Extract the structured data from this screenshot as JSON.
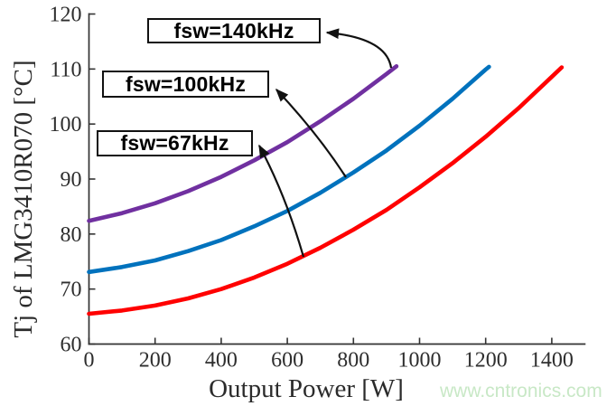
{
  "page": {
    "background": "#ffffff"
  },
  "watermark": {
    "text": "www.cntronics.com",
    "color": "#c8e8c6"
  },
  "chart_data": {
    "type": "line",
    "title": "",
    "xlabel": "Output Power [W]",
    "ylabel": "Tj of LMG3410R070 [°C]",
    "xlim": [
      0,
      1500
    ],
    "ylim": [
      60,
      120
    ],
    "xticks": [
      0,
      200,
      400,
      600,
      800,
      1000,
      1200,
      1400
    ],
    "yticks": [
      60,
      70,
      80,
      90,
      100,
      110,
      120
    ],
    "grid": false,
    "legend_position": "none",
    "axis_color": "#333333",
    "series": [
      {
        "name": "fsw=140kHz",
        "color": "#7030a0",
        "points": [
          [
            0,
            82.4
          ],
          [
            100,
            83.8
          ],
          [
            200,
            85.6
          ],
          [
            300,
            87.8
          ],
          [
            400,
            90.4
          ],
          [
            500,
            93.4
          ],
          [
            600,
            96.7
          ],
          [
            700,
            100.5
          ],
          [
            800,
            104.6
          ],
          [
            900,
            109.1
          ],
          [
            930,
            110.5
          ]
        ]
      },
      {
        "name": "fsw=100kHz",
        "color": "#0072bd",
        "points": [
          [
            0,
            73.1
          ],
          [
            100,
            74.0
          ],
          [
            200,
            75.2
          ],
          [
            300,
            76.9
          ],
          [
            400,
            78.9
          ],
          [
            500,
            81.4
          ],
          [
            600,
            84.2
          ],
          [
            700,
            87.5
          ],
          [
            800,
            91.2
          ],
          [
            900,
            95.2
          ],
          [
            1000,
            99.7
          ],
          [
            1100,
            104.6
          ],
          [
            1200,
            109.9
          ],
          [
            1210,
            110.4
          ]
        ]
      },
      {
        "name": "fsw=67kHz",
        "color": "#ff0000",
        "points": [
          [
            0,
            65.5
          ],
          [
            100,
            66.1
          ],
          [
            200,
            67.0
          ],
          [
            300,
            68.3
          ],
          [
            400,
            70.0
          ],
          [
            500,
            72.1
          ],
          [
            600,
            74.6
          ],
          [
            700,
            77.5
          ],
          [
            800,
            80.8
          ],
          [
            900,
            84.4
          ],
          [
            1000,
            88.5
          ],
          [
            1100,
            92.9
          ],
          [
            1200,
            97.7
          ],
          [
            1300,
            102.9
          ],
          [
            1400,
            108.6
          ],
          [
            1430,
            110.3
          ]
        ]
      }
    ],
    "annotations": [
      {
        "label": "fsw=140kHz",
        "points_to_series": "fsw=140kHz",
        "target_point": {
          "power_w": 920,
          "tj_c": 110
        },
        "box": {
          "x": 163,
          "y": 20,
          "w": 192,
          "h": 28
        },
        "arrow": {
          "tail": [
            433,
            75
          ],
          "ctrl": [
            428,
            42
          ],
          "tip": [
            362,
            36
          ]
        }
      },
      {
        "label": "fsw=100kHz",
        "points_to_series": "fsw=100kHz",
        "target_point": {
          "power_w": 780,
          "tj_c": 90
        },
        "box": {
          "x": 113,
          "y": 78,
          "w": 185,
          "h": 30
        },
        "arrow": {
          "tail": [
            383,
            196
          ],
          "ctrl": [
            352,
            148
          ],
          "tip": [
            306,
            99
          ]
        }
      },
      {
        "label": "fsw=67kHz",
        "points_to_series": "fsw=67kHz",
        "target_point": {
          "power_w": 650,
          "tj_c": 76
        },
        "box": {
          "x": 107,
          "y": 144,
          "w": 173,
          "h": 29
        },
        "arrow": {
          "tail": [
            336,
            284
          ],
          "ctrl": [
            316,
            215
          ],
          "tip": [
            287,
            161
          ]
        }
      }
    ]
  }
}
